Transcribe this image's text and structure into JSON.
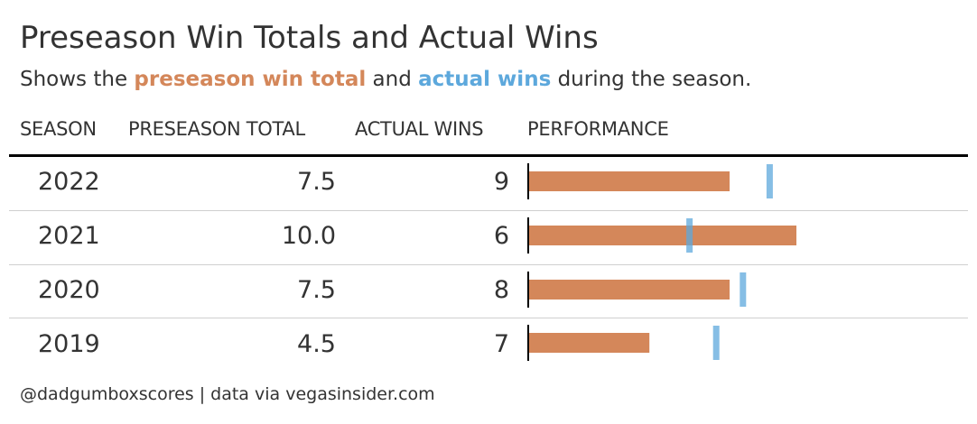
{
  "title": "Preseason Win Totals and Actual Wins",
  "subtitle": {
    "prefix": "Shows the ",
    "preseason_label": "preseason win total",
    "middle": " and ",
    "actual_label": "actual wins",
    "suffix": " during the season."
  },
  "columns": {
    "season": "SEASON",
    "preseason": "PRESEASON TOTAL",
    "actual": "ACTUAL WINS",
    "performance": "PERFORMANCE"
  },
  "rows": [
    {
      "season": "2022",
      "preseason": "7.5",
      "actual": "9"
    },
    {
      "season": "2021",
      "preseason": "10.0",
      "actual": "6"
    },
    {
      "season": "2020",
      "preseason": "7.5",
      "actual": "8"
    },
    {
      "season": "2019",
      "preseason": "4.5",
      "actual": "7"
    }
  ],
  "footer": "@dadgumboxscores | data via vegasinsider.com",
  "colors": {
    "preseason": "#D4875A",
    "actual": "#5DA8DC",
    "text": "#333333"
  },
  "chart_data": {
    "type": "bar",
    "categories": [
      "2022",
      "2021",
      "2020",
      "2019"
    ],
    "series": [
      {
        "name": "preseason win total",
        "values": [
          7.5,
          10.0,
          7.5,
          4.5
        ]
      },
      {
        "name": "actual wins",
        "values": [
          9,
          6,
          8,
          7
        ]
      }
    ],
    "xlim": [
      0,
      12
    ],
    "grid": false,
    "legend": "subtitle"
  }
}
